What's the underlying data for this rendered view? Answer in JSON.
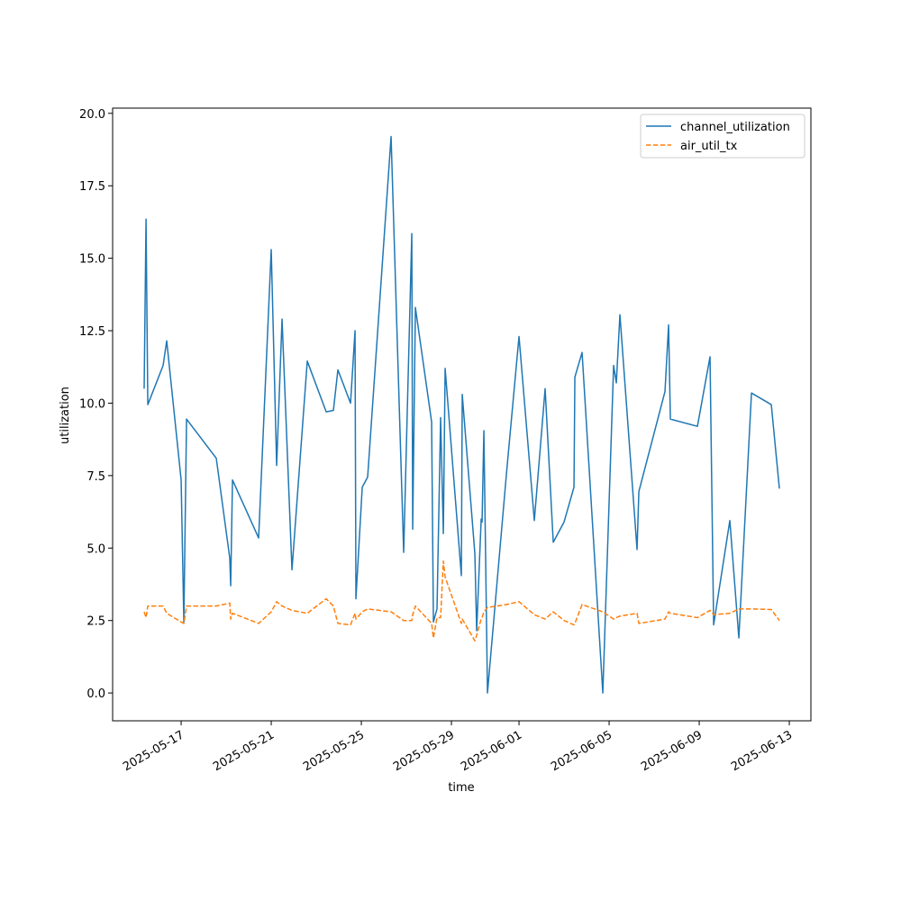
{
  "chart_data": {
    "type": "line",
    "xlabel": "time",
    "ylabel": "utilization",
    "x": [
      "2025-05-15T08:36",
      "2025-05-15T10:36",
      "2025-05-15T12:29",
      "2025-05-16T04:48",
      "2025-05-16T08:38",
      "2025-05-17T00:00",
      "2025-05-17T02:53",
      "2025-05-17T05:46",
      "2025-05-18T13:26",
      "2025-05-19T03:50",
      "2025-05-19T04:48",
      "2025-05-19T06:43",
      "2025-05-20T10:34",
      "2025-05-21T00:00",
      "2025-05-21T05:46",
      "2025-05-21T11:31",
      "2025-05-21T22:05",
      "2025-05-22T14:24",
      "2025-05-23T10:34",
      "2025-05-23T18:14",
      "2025-05-23T23:02",
      "2025-05-24T12:29",
      "2025-05-24T17:17",
      "2025-05-24T18:14",
      "2025-05-25T00:58",
      "2025-05-25T06:43",
      "2025-05-26T07:41",
      "2025-05-26T21:07",
      "2025-05-27T05:46",
      "2025-05-27T06:43",
      "2025-05-27T09:36",
      "2025-05-28T02:53",
      "2025-05-28T04:48",
      "2025-05-28T08:38",
      "2025-05-28T12:29",
      "2025-05-28T15:22",
      "2025-05-28T17:17",
      "2025-05-29T10:34",
      "2025-05-29T11:31",
      "2025-05-30T00:58",
      "2025-05-30T02:53",
      "2025-05-30T07:41",
      "2025-05-30T08:38",
      "2025-05-30T10:34",
      "2025-05-30T14:24",
      "2025-05-31T10:34",
      "2025-06-01T00:00",
      "2025-06-01T16:19",
      "2025-06-02T03:50",
      "2025-06-02T12:29",
      "2025-06-03T00:00",
      "2025-06-03T10:34",
      "2025-06-03T11:31",
      "2025-06-03T19:12",
      "2025-06-04T17:17",
      "2025-06-05T04:48",
      "2025-06-05T07:41",
      "2025-06-05T11:31",
      "2025-06-06T05:46",
      "2025-06-06T07:41",
      "2025-06-07T11:31",
      "2025-06-07T15:22",
      "2025-06-07T17:17",
      "2025-06-08T22:05",
      "2025-06-09T11:31",
      "2025-06-09T15:22",
      "2025-06-10T08:38",
      "2025-06-10T18:14",
      "2025-06-11T07:41",
      "2025-06-12T04:48",
      "2025-06-12T13:26"
    ],
    "series": [
      {
        "name": "channel_utilization",
        "color": "#1f77b4",
        "dash": false,
        "values": [
          10.5,
          16.35,
          9.95,
          11.3,
          12.15,
          7.35,
          2.45,
          9.45,
          8.1,
          4.65,
          3.7,
          7.35,
          5.35,
          15.3,
          7.85,
          12.9,
          4.25,
          11.45,
          9.7,
          9.75,
          11.15,
          10.0,
          12.5,
          3.25,
          7.1,
          7.45,
          19.2,
          4.85,
          15.85,
          5.65,
          13.3,
          9.35,
          2.45,
          2.9,
          9.5,
          5.5,
          11.2,
          4.05,
          10.3,
          4.8,
          2.15,
          6.0,
          5.9,
          9.05,
          0.0,
          7.55,
          12.3,
          5.95,
          10.5,
          5.2,
          5.9,
          7.1,
          10.9,
          11.75,
          0.0,
          11.3,
          10.7,
          13.05,
          4.95,
          6.95,
          10.4,
          12.7,
          9.45,
          9.2,
          11.6,
          2.35,
          5.95,
          1.9,
          10.35,
          9.95,
          7.05
        ]
      },
      {
        "name": "air_util_tx",
        "color": "#ff7f0e",
        "dash": true,
        "values": [
          2.8,
          2.6,
          3.0,
          3.0,
          2.75,
          2.45,
          2.4,
          3.0,
          3.0,
          3.1,
          2.55,
          2.75,
          2.4,
          2.8,
          3.15,
          3.0,
          2.85,
          2.75,
          3.25,
          3.0,
          2.4,
          2.35,
          2.75,
          2.55,
          2.8,
          2.9,
          2.8,
          2.5,
          2.5,
          2.7,
          3.0,
          2.4,
          1.9,
          2.6,
          2.6,
          4.55,
          4.0,
          2.4,
          2.55,
          1.8,
          2.0,
          2.55,
          2.6,
          2.8,
          2.95,
          3.05,
          3.15,
          2.7,
          2.55,
          2.8,
          2.5,
          2.35,
          2.4,
          3.05,
          2.8,
          2.55,
          2.6,
          2.65,
          2.75,
          2.4,
          2.55,
          2.8,
          2.75,
          2.6,
          2.85,
          2.7,
          2.75,
          2.9,
          2.9,
          2.88,
          2.5
        ]
      }
    ],
    "xlim": [
      "2025-05-13T23:00",
      "2025-06-13T23:00"
    ],
    "xticks": [
      "2025-05-17",
      "2025-05-21",
      "2025-05-25",
      "2025-05-29",
      "2025-06-01",
      "2025-06-05",
      "2025-06-09",
      "2025-06-13"
    ],
    "ylim": [
      -0.96,
      20.18
    ],
    "yticks": [
      {
        "value": 0,
        "label": "0.0"
      },
      {
        "value": 2.5,
        "label": "2.5"
      },
      {
        "value": 5,
        "label": "5.0"
      },
      {
        "value": 7.5,
        "label": "7.5"
      },
      {
        "value": 10,
        "label": "10.0"
      },
      {
        "value": 12.5,
        "label": "12.5"
      },
      {
        "value": 15,
        "label": "15.0"
      },
      {
        "value": 17.5,
        "label": "17.5"
      },
      {
        "value": 20,
        "label": "20.0"
      }
    ],
    "legend": "upper right",
    "grid": false
  }
}
